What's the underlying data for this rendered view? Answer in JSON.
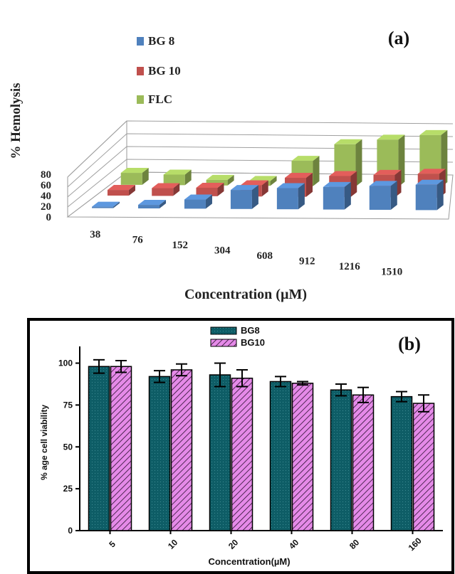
{
  "chart_data": [
    {
      "type": "bar",
      "subtype": "3d-grouped",
      "panel_label": "(a)",
      "title": "",
      "xlabel": "Concentration (µM)",
      "ylabel": "% Hemolysis",
      "ylim": [
        0,
        80
      ],
      "y_ticks": [
        "0",
        "20",
        "40",
        "60",
        "80"
      ],
      "grid": true,
      "legend_position": "top-left",
      "categories": [
        "38",
        "76",
        "152",
        "304",
        "608",
        "912",
        "1216",
        "1510"
      ],
      "series": [
        {
          "name": "BG 8",
          "color": "#4f81bd",
          "values": [
            2,
            5,
            13,
            27,
            30,
            32,
            34,
            36
          ]
        },
        {
          "name": "BG 10",
          "color": "#c0504d",
          "values": [
            8,
            11,
            12,
            16,
            27,
            30,
            32,
            34
          ]
        },
        {
          "name": "FLC",
          "color": "#9bbb59",
          "values": [
            17,
            15,
            8,
            7,
            36,
            60,
            67,
            74
          ]
        }
      ]
    },
    {
      "type": "bar",
      "panel_label": "(b)",
      "title": "",
      "xlabel": "Concentration(µM)",
      "ylabel": "% age cell viability",
      "ylim": [
        0,
        110
      ],
      "y_ticks": [
        "0",
        "25",
        "50",
        "75",
        "100"
      ],
      "grid": false,
      "legend_position": "top-center",
      "categories": [
        "5",
        "10",
        "20",
        "40",
        "80",
        "160"
      ],
      "series": [
        {
          "name": "BG8",
          "color": "#0d5a63",
          "values": [
            98,
            92,
            93,
            89,
            84,
            80
          ],
          "errors": [
            4,
            3.5,
            7,
            3,
            3.5,
            3
          ]
        },
        {
          "name": "BG10",
          "color": "#e089e6",
          "values": [
            98,
            96,
            91,
            88,
            81,
            76
          ],
          "errors": [
            3.5,
            3.5,
            5,
            1,
            4.5,
            5
          ]
        }
      ]
    }
  ]
}
